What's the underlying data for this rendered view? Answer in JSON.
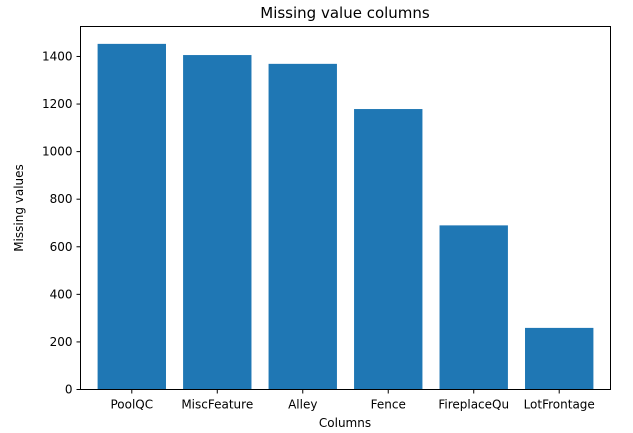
{
  "chart_data": {
    "type": "bar",
    "title": "Missing value columns",
    "xlabel": "Columns",
    "ylabel": "Missing values",
    "categories": [
      "PoolQC",
      "MiscFeature",
      "Alley",
      "Fence",
      "FireplaceQu",
      "LotFrontage"
    ],
    "values": [
      1453,
      1406,
      1369,
      1179,
      690,
      259
    ],
    "ylim": [
      0,
      1526
    ],
    "yticks": [
      0,
      200,
      400,
      600,
      800,
      1000,
      1200,
      1400
    ],
    "bar_color": "#1f77b4",
    "grid": false,
    "legend": "none"
  }
}
